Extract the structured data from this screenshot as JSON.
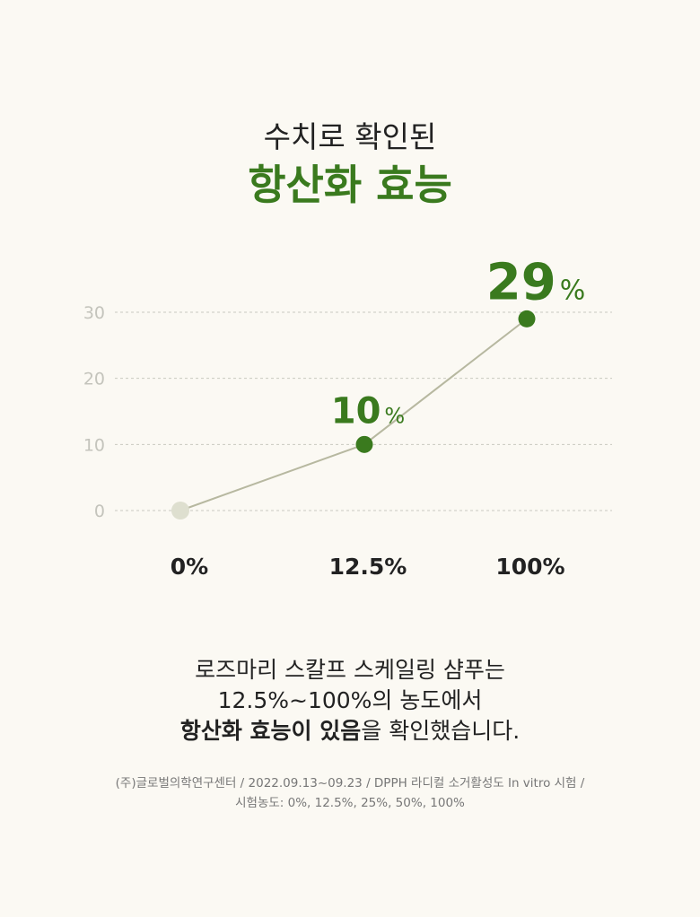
{
  "header": {
    "subtitle": "수치로 확인된",
    "title": "항산화 효능"
  },
  "colors": {
    "accent": "#3a7a1e",
    "line": "#b7b8a0",
    "grid": "#c9c9c0",
    "baseline_point": "#dedfcf",
    "background": "#fbf9f3"
  },
  "chart_data": {
    "type": "line",
    "categories": [
      "0%",
      "12.5%",
      "100%"
    ],
    "values": [
      0,
      10,
      29
    ],
    "data_labels": [
      {
        "number": "",
        "unit": ""
      },
      {
        "number": "10",
        "unit": "%"
      },
      {
        "number": "29",
        "unit": "%"
      }
    ],
    "yticks": [
      "0",
      "10",
      "20",
      "30"
    ],
    "ylim": [
      0,
      30
    ],
    "grid": true,
    "title": "",
    "xlabel": "",
    "ylabel": ""
  },
  "description": {
    "line1": "로즈마리 스칼프 스케일링 샴푸는",
    "line2": "12.5%~100%의 농도에서",
    "line3_bold": "항산화 효능이 있음",
    "line3_rest": "을 확인했습니다."
  },
  "footnote": {
    "line1": "(주)글로벌의학연구센터 / 2022.09.13~09.23 / DPPH 라디컬 소거활성도 In vitro 시험 /",
    "line2": "시험농도: 0%, 12.5%, 25%, 50%, 100%"
  }
}
